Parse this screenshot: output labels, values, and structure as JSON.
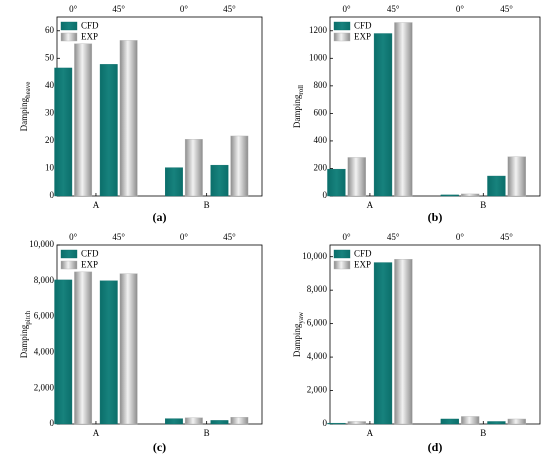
{
  "chart_data": [
    {
      "type": "bar",
      "caption": "(a)",
      "ylabel": {
        "main": "Damping",
        "sub": "heave"
      },
      "categories": [
        "A",
        "B"
      ],
      "subgroups": [
        "0°",
        "45°"
      ],
      "series": [
        {
          "name": "CFD",
          "color": "#0b6e6a",
          "values": [
            [
              46.5,
              47.8
            ],
            [
              10.3,
              11.2
            ]
          ]
        },
        {
          "name": "EXP",
          "color": "#b4b4b4",
          "values": [
            [
              55.3,
              56.5
            ],
            [
              20.6,
              21.8
            ]
          ]
        }
      ],
      "ylim": [
        0,
        65
      ],
      "yticks": [
        0,
        10,
        20,
        30,
        40,
        50,
        60
      ],
      "legend": "upper left"
    },
    {
      "type": "bar",
      "caption": "(b)",
      "ylabel": {
        "main": "Damping",
        "sub": "roll"
      },
      "categories": [
        "A",
        "B"
      ],
      "subgroups": [
        "0°",
        "45°"
      ],
      "series": [
        {
          "name": "CFD",
          "color": "#0b6e6a",
          "values": [
            [
              195,
              1180
            ],
            [
              8,
              145
            ]
          ]
        },
        {
          "name": "EXP",
          "color": "#b4b4b4",
          "values": [
            [
              280,
              1260
            ],
            [
              15,
              285
            ]
          ]
        }
      ],
      "ylim": [
        0,
        1300
      ],
      "yticks": [
        0,
        200,
        400,
        600,
        800,
        1000,
        1200
      ],
      "legend": "upper left"
    },
    {
      "type": "bar",
      "caption": "(c)",
      "ylabel": {
        "main": "Damping",
        "sub": "pitch"
      },
      "categories": [
        "A",
        "B"
      ],
      "subgroups": [
        "0°",
        "45°"
      ],
      "series": [
        {
          "name": "CFD",
          "color": "#0b6e6a",
          "values": [
            [
              8050,
              8000
            ],
            [
              300,
              200
            ]
          ]
        },
        {
          "name": "EXP",
          "color": "#b4b4b4",
          "values": [
            [
              8500,
              8400
            ],
            [
              350,
              380
            ]
          ]
        }
      ],
      "ylim": [
        0,
        10000
      ],
      "yticks": [
        0,
        {
          "value": 2000,
          "label": "2,000"
        },
        {
          "value": 4000,
          "label": "4,000"
        },
        {
          "value": 6000,
          "label": "6,000"
        },
        {
          "value": 8000,
          "label": "8,000"
        },
        {
          "value": 10000,
          "label": "10,000"
        }
      ],
      "legend": "upper left"
    },
    {
      "type": "bar",
      "caption": "(d)",
      "ylabel": {
        "main": "Damping",
        "sub": "yaw"
      },
      "categories": [
        "A",
        "B"
      ],
      "subgroups": [
        "0°",
        "45°"
      ],
      "series": [
        {
          "name": "CFD",
          "color": "#0b6e6a",
          "values": [
            [
              50,
              9650
            ],
            [
              300,
              150
            ]
          ]
        },
        {
          "name": "EXP",
          "color": "#b4b4b4",
          "values": [
            [
              150,
              9850
            ],
            [
              450,
              300
            ]
          ]
        }
      ],
      "ylim": [
        0,
        10700
      ],
      "yticks": [
        0,
        {
          "value": 2000,
          "label": "2,000"
        },
        {
          "value": 4000,
          "label": "4,000"
        },
        {
          "value": 6000,
          "label": "6,000"
        },
        {
          "value": 8000,
          "label": "8,000"
        },
        {
          "value": 10000,
          "label": "10,000"
        }
      ],
      "legend": "upper left"
    }
  ]
}
